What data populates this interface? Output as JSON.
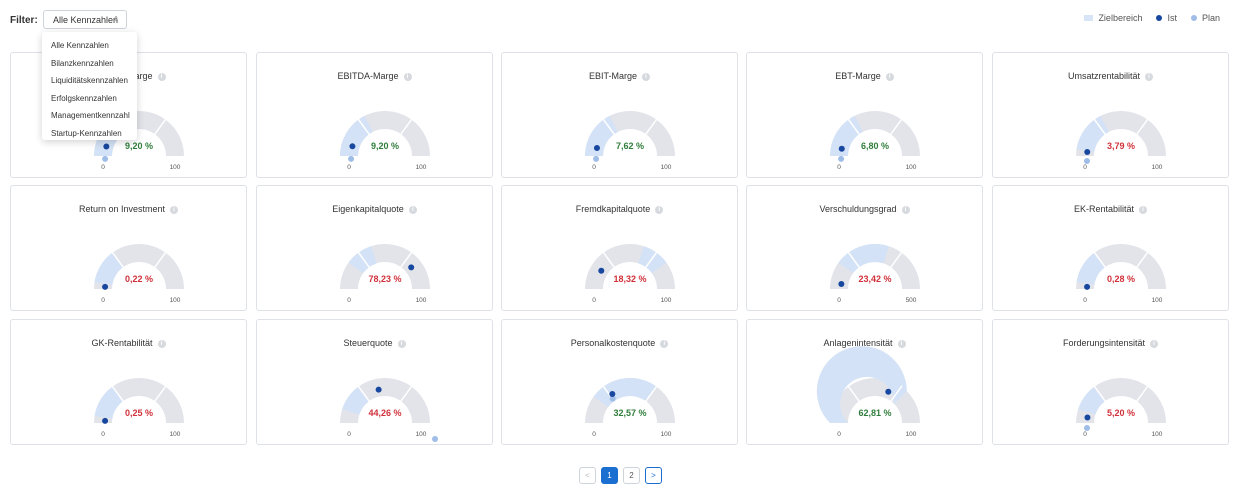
{
  "filter": {
    "label": "Filter:",
    "selected": "Alle Kennzahlen",
    "caret": "⇕",
    "options": [
      "Alle Kennzahlen",
      "Bilanzkennzahlen",
      "Liquiditätskennzahlen",
      "Erfolgskennzahlen",
      "Managementkennzahl",
      "Startup-Kennzahlen"
    ]
  },
  "legend": [
    {
      "label": "Zielbereich",
      "type": "rect",
      "color": "#d8e5f6"
    },
    {
      "label": "Ist",
      "type": "dot",
      "color": "#17479e"
    },
    {
      "label": "Plan",
      "type": "dot",
      "color": "#9fbde6"
    }
  ],
  "colors": {
    "track": "#e2e4ea",
    "target": "#d3e2f6",
    "ist": "#17479e",
    "plan": "#9fbde6",
    "good": "#2f7d3a",
    "bad": "#d0313a"
  },
  "cards": [
    {
      "title": "EBITDA-Marge",
      "value": "9,20 %",
      "status": "good",
      "min": "0",
      "max": "100",
      "target": [
        0,
        0.35
      ],
      "ist": 0.09,
      "plan": 0.02
    },
    {
      "title": "EBITDA-Marge",
      "value": "9,20 %",
      "status": "good",
      "min": "0",
      "max": "100",
      "target": [
        0,
        0.35
      ],
      "ist": 0.092,
      "plan": 0.02
    },
    {
      "title": "EBIT-Marge",
      "value": "7,62 %",
      "status": "good",
      "min": "0",
      "max": "100",
      "target": [
        0,
        0.35
      ],
      "ist": 0.076,
      "plan": 0.02
    },
    {
      "title": "EBT-Marge",
      "value": "6,80 %",
      "status": "good",
      "min": "0",
      "max": "100",
      "target": [
        0,
        0.35
      ],
      "ist": 0.068,
      "plan": 0.02
    },
    {
      "title": "Umsatzrentabilität",
      "value": "3,79 %",
      "status": "bad",
      "min": "0",
      "max": "100",
      "target": [
        0.05,
        0.35
      ],
      "ist": 0.038,
      "plan": 0.0
    },
    {
      "title": "Return on Investment",
      "value": "0,22 %",
      "status": "bad",
      "min": "0",
      "max": "100",
      "target": [
        0.05,
        0.3
      ],
      "ist": 0.002,
      "plan": null
    },
    {
      "title": "Eigenkapitalquote",
      "value": "78,23 %",
      "status": "bad",
      "min": "0",
      "max": "100",
      "target": [
        0.2,
        0.4
      ],
      "ist": 0.78,
      "plan": null
    },
    {
      "title": "Fremdkapitalquote",
      "value": "18,32 %",
      "status": "bad",
      "min": "0",
      "max": "100",
      "target": [
        0.6,
        0.8
      ],
      "ist": 0.18,
      "plan": null
    },
    {
      "title": "Verschuldungsgrad",
      "value": "23,42 %",
      "status": "bad",
      "min": "0",
      "max": "500",
      "target": [
        0.2,
        0.6
      ],
      "ist": 0.047,
      "plan": null
    },
    {
      "title": "EK-Rentabilität",
      "value": "0,28 %",
      "status": "bad",
      "min": "0",
      "max": "100",
      "target": [
        0.05,
        0.3
      ],
      "ist": 0.003,
      "plan": null
    },
    {
      "title": "GK-Rentabilität",
      "value": "0,25 %",
      "status": "bad",
      "min": "0",
      "max": "100",
      "target": [
        0.05,
        0.3
      ],
      "ist": 0.003,
      "plan": null
    },
    {
      "title": "Steuerquote",
      "value": "44,26 %",
      "status": "bad",
      "min": "0",
      "max": "100",
      "target": [
        0.1,
        0.3
      ],
      "ist": 0.44,
      "plan": 1.0
    },
    {
      "title": "Personalkostenquote",
      "value": "32,57 %",
      "status": "good",
      "min": "0",
      "max": "100",
      "target": [
        0.2,
        0.7
      ],
      "ist": 0.326,
      "plan": 0.33
    },
    {
      "title": "Anlagenintensität",
      "value": "62,81 %",
      "status": "good",
      "min": "0",
      "max": "100",
      "target": [
        0.0,
        0.75
      ],
      "ist": 0.628,
      "plan": null
    },
    {
      "title": "Forderungsintensität",
      "value": "5,20 %",
      "status": "bad",
      "min": "0",
      "max": "100",
      "target": [
        0.1,
        0.3
      ],
      "ist": 0.052,
      "plan": 0.0
    }
  ],
  "first_card_visible_title": "-Marge",
  "first_card_visible_value": ",",
  "pagination": {
    "prev": "<",
    "pages": [
      "1",
      "2"
    ],
    "next": ">",
    "current": "1"
  }
}
